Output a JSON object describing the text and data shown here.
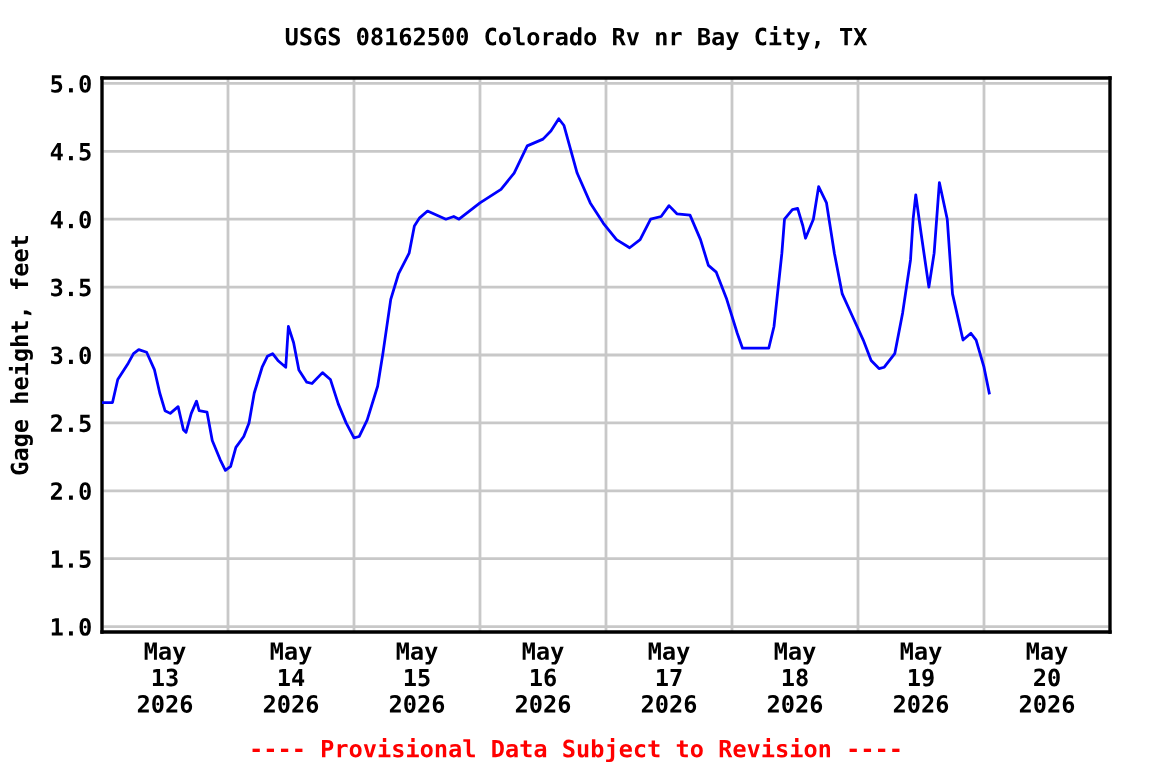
{
  "chart_data": {
    "type": "line",
    "title": "USGS 08162500 Colorado Rv nr Bay City, TX",
    "ylabel": "Gage height, feet",
    "annotations": [
      "---- Provisional Data Subject to Revision ----"
    ],
    "xlim": [
      "2026-05-13T00:00",
      "2026-05-21T00:00"
    ],
    "xticks": [
      {
        "value": "2026-05-13T00:00",
        "label": null
      },
      {
        "value": "2026-05-13T12:00",
        "label": "May\n13\n2026"
      },
      {
        "value": "2026-05-14T00:00",
        "label": null
      },
      {
        "value": "2026-05-14T12:00",
        "label": "May\n14\n2026"
      },
      {
        "value": "2026-05-15T00:00",
        "label": null
      },
      {
        "value": "2026-05-15T12:00",
        "label": "May\n15\n2026"
      },
      {
        "value": "2026-05-16T00:00",
        "label": null
      },
      {
        "value": "2026-05-16T12:00",
        "label": "May\n16\n2026"
      },
      {
        "value": "2026-05-17T00:00",
        "label": null
      },
      {
        "value": "2026-05-17T12:00",
        "label": "May\n17\n2026"
      },
      {
        "value": "2026-05-18T00:00",
        "label": null
      },
      {
        "value": "2026-05-18T12:00",
        "label": "May\n18\n2026"
      },
      {
        "value": "2026-05-19T00:00",
        "label": null
      },
      {
        "value": "2026-05-19T12:00",
        "label": "May\n19\n2026"
      },
      {
        "value": "2026-05-20T00:00",
        "label": null
      },
      {
        "value": "2026-05-20T12:00",
        "label": "May\n20\n2026"
      },
      {
        "value": "2026-05-21T00:00",
        "label": null
      }
    ],
    "ylim": [
      0.96,
      5.04
    ],
    "yticks": [
      {
        "value": 1.0,
        "label": "1.0"
      },
      {
        "value": 1.5,
        "label": "1.5"
      },
      {
        "value": 2.0,
        "label": "2.0"
      },
      {
        "value": 2.5,
        "label": "2.5"
      },
      {
        "value": 3.0,
        "label": "3.0"
      },
      {
        "value": 3.5,
        "label": "3.5"
      },
      {
        "value": 4.0,
        "label": "4.0"
      },
      {
        "value": 4.5,
        "label": "4.5"
      },
      {
        "value": 5.0,
        "label": "5.0"
      }
    ],
    "grid": true,
    "legend": false,
    "marker": "none",
    "line_style": "solid",
    "series": [
      {
        "color": "#0000ff",
        "x": [
          "2026-05-13T00:00",
          "2026-05-13T02:00",
          "2026-05-13T03:00",
          "2026-05-13T05:00",
          "2026-05-13T06:00",
          "2026-05-13T07:00",
          "2026-05-13T08:30",
          "2026-05-13T10:00",
          "2026-05-13T11:00",
          "2026-05-13T12:00",
          "2026-05-13T13:00",
          "2026-05-13T14:30",
          "2026-05-13T15:30",
          "2026-05-13T16:00",
          "2026-05-13T17:00",
          "2026-05-13T18:00",
          "2026-05-13T18:30",
          "2026-05-13T20:00",
          "2026-05-13T21:00",
          "2026-05-13T22:30",
          "2026-05-13T23:30",
          "2026-05-14T00:30",
          "2026-05-14T01:30",
          "2026-05-14T03:00",
          "2026-05-14T04:00",
          "2026-05-14T05:00",
          "2026-05-14T06:30",
          "2026-05-14T07:30",
          "2026-05-14T08:30",
          "2026-05-14T09:30",
          "2026-05-14T11:00",
          "2026-05-14T11:30",
          "2026-05-14T12:30",
          "2026-05-14T13:30",
          "2026-05-14T15:00",
          "2026-05-14T16:00",
          "2026-05-14T18:00",
          "2026-05-14T19:30",
          "2026-05-14T21:00",
          "2026-05-14T22:30",
          "2026-05-15T00:00",
          "2026-05-15T01:00",
          "2026-05-15T02:30",
          "2026-05-15T04:30",
          "2026-05-15T05:30",
          "2026-05-15T07:00",
          "2026-05-15T08:30",
          "2026-05-15T10:30",
          "2026-05-15T11:30",
          "2026-05-15T12:30",
          "2026-05-15T14:00",
          "2026-05-15T17:30",
          "2026-05-15T19:00",
          "2026-05-15T20:00",
          "2026-05-16T00:00",
          "2026-05-16T04:00",
          "2026-05-16T06:30",
          "2026-05-16T09:00",
          "2026-05-16T12:00",
          "2026-05-16T13:30",
          "2026-05-16T15:00",
          "2026-05-16T16:00",
          "2026-05-16T18:30",
          "2026-05-16T21:00",
          "2026-05-16T23:30",
          "2026-05-17T02:00",
          "2026-05-17T04:30",
          "2026-05-17T06:30",
          "2026-05-17T08:30",
          "2026-05-17T10:30",
          "2026-05-17T12:00",
          "2026-05-17T13:30",
          "2026-05-17T16:00",
          "2026-05-17T18:00",
          "2026-05-17T19:30",
          "2026-05-17T21:00",
          "2026-05-17T23:00",
          "2026-05-18T01:00",
          "2026-05-18T02:00",
          "2026-05-18T05:00",
          "2026-05-18T07:00",
          "2026-05-18T08:00",
          "2026-05-18T09:30",
          "2026-05-18T10:00",
          "2026-05-18T11:30",
          "2026-05-18T12:30",
          "2026-05-18T13:30",
          "2026-05-18T14:00",
          "2026-05-18T15:30",
          "2026-05-18T16:30",
          "2026-05-18T18:00",
          "2026-05-18T19:30",
          "2026-05-18T21:00",
          "2026-05-18T23:00",
          "2026-05-19T01:00",
          "2026-05-19T02:30",
          "2026-05-19T04:00",
          "2026-05-19T05:00",
          "2026-05-19T07:00",
          "2026-05-19T08:30",
          "2026-05-19T10:00",
          "2026-05-19T10:30",
          "2026-05-19T11:00",
          "2026-05-19T12:00",
          "2026-05-19T13:30",
          "2026-05-19T14:30",
          "2026-05-19T15:30",
          "2026-05-19T17:00",
          "2026-05-19T18:00",
          "2026-05-19T20:00",
          "2026-05-19T21:30",
          "2026-05-19T22:30",
          "2026-05-20T00:00",
          "2026-05-20T01:00"
        ],
        "values": [
          2.65,
          2.65,
          2.82,
          2.94,
          3.01,
          3.04,
          3.02,
          2.89,
          2.72,
          2.59,
          2.57,
          2.62,
          2.45,
          2.43,
          2.57,
          2.66,
          2.59,
          2.58,
          2.37,
          2.23,
          2.15,
          2.18,
          2.32,
          2.4,
          2.5,
          2.72,
          2.91,
          2.99,
          3.01,
          2.96,
          2.91,
          3.21,
          3.09,
          2.89,
          2.8,
          2.79,
          2.87,
          2.82,
          2.64,
          2.5,
          2.39,
          2.4,
          2.52,
          2.77,
          3.01,
          3.41,
          3.6,
          3.75,
          3.95,
          4.01,
          4.06,
          4.0,
          4.02,
          4.0,
          4.12,
          4.22,
          4.34,
          4.54,
          4.59,
          4.65,
          4.74,
          4.69,
          4.34,
          4.12,
          3.97,
          3.85,
          3.79,
          3.85,
          4.0,
          4.02,
          4.1,
          4.04,
          4.03,
          3.85,
          3.66,
          3.61,
          3.41,
          3.16,
          3.05,
          3.05,
          3.05,
          3.21,
          3.75,
          4.0,
          4.07,
          4.08,
          3.95,
          3.86,
          4.0,
          4.24,
          4.12,
          3.75,
          3.45,
          3.28,
          3.11,
          2.96,
          2.9,
          2.91,
          3.01,
          3.31,
          3.7,
          4.0,
          4.18,
          3.9,
          3.5,
          3.75,
          4.27,
          4.0,
          3.45,
          3.11,
          3.16,
          3.11,
          2.91,
          2.72
        ]
      }
    ]
  }
}
